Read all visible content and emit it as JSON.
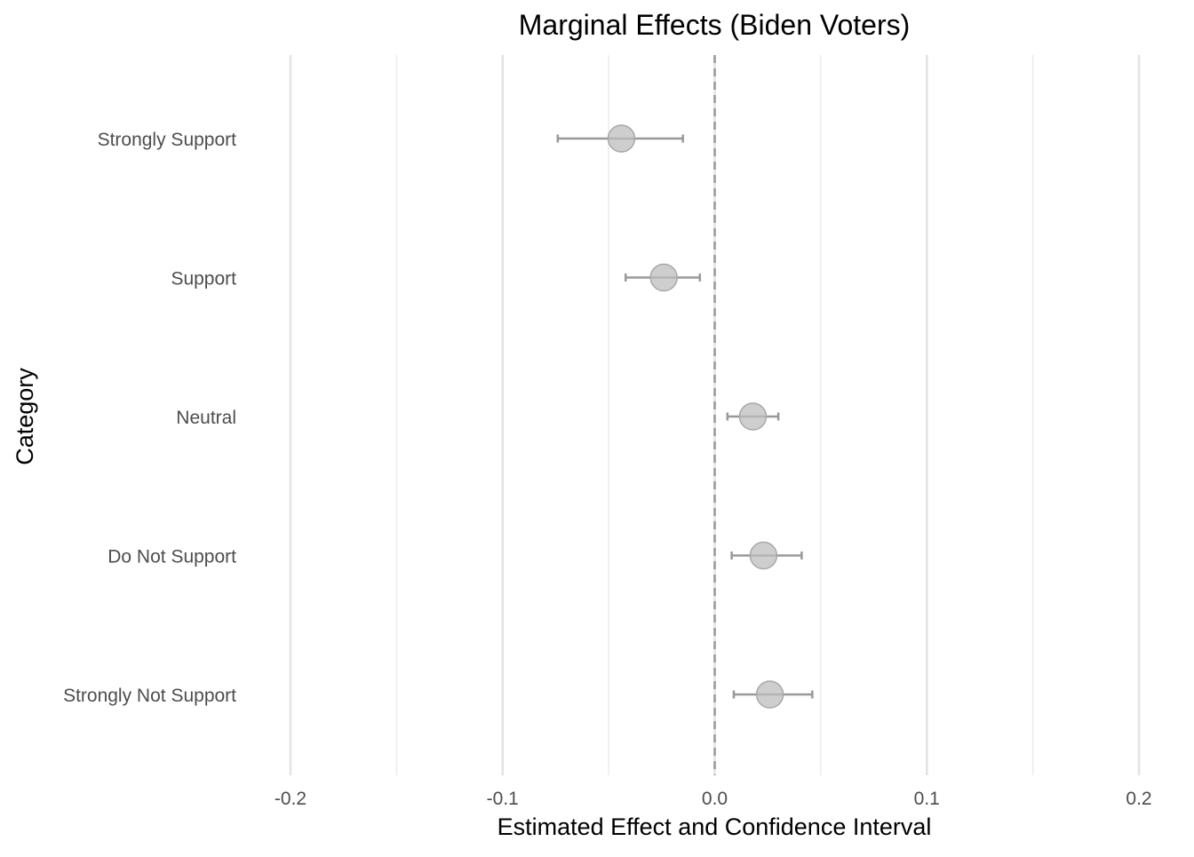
{
  "chart_data": {
    "type": "scatter",
    "subtype": "dot-and-whisker",
    "title": "Marginal Effects (Biden Voters)",
    "xlabel": "Estimated Effect and Confidence Interval",
    "ylabel": "Category",
    "xlim": [
      -0.2,
      0.2
    ],
    "x_ticks": [
      -0.2,
      -0.1,
      0.0,
      0.1,
      0.2
    ],
    "x_tick_labels": [
      "-0.2",
      "-0.1",
      "0.0",
      "0.1",
      "0.2"
    ],
    "x_minor_gridlines": [
      -0.15,
      -0.05,
      0.05,
      0.15
    ],
    "reference_line": 0,
    "grid": "vertical",
    "legend": "none",
    "categories": [
      "Strongly Support",
      "Support",
      "Neutral",
      "Do Not Support",
      "Strongly Not Support"
    ],
    "estimates": [
      -0.044,
      -0.024,
      0.018,
      0.023,
      0.026
    ],
    "ci_lower": [
      -0.074,
      -0.042,
      0.006,
      0.008,
      0.009
    ],
    "ci_upper": [
      -0.015,
      -0.007,
      0.03,
      0.041,
      0.046
    ],
    "colors": {
      "point_fill": "#bdbdbd",
      "point_stroke": "#a8a8a8",
      "errorbar": "#999999",
      "reference_line": "#999999",
      "grid_major": "#e3e3e3",
      "grid_minor": "#ececec",
      "text": "#000000",
      "tick_text": "#4d4d4d"
    }
  }
}
